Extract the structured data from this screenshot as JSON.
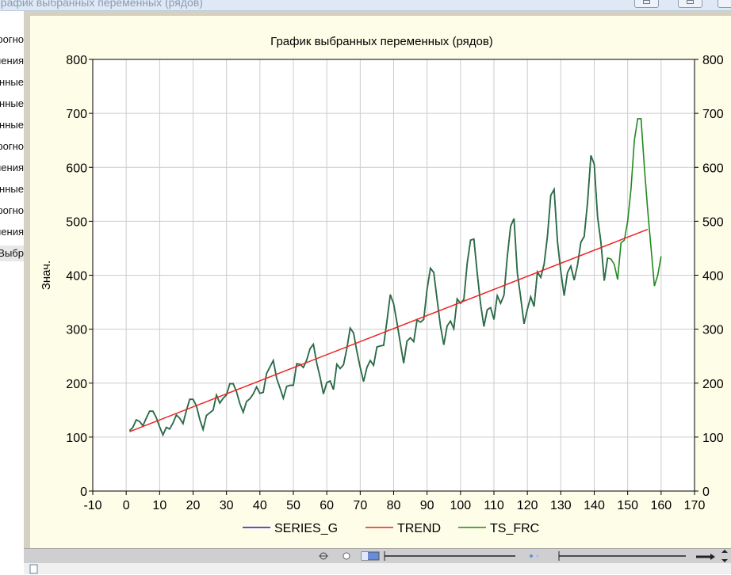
{
  "window": {
    "title": "График выбранных переменных (рядов)"
  },
  "left_panel": {
    "items": [
      {
        "label": "Прогно:",
        "selected": false
      },
      {
        "label": "Значения",
        "selected": false
      },
      {
        "label": "Переменные",
        "selected": false
      },
      {
        "label": "Переменные",
        "selected": false
      },
      {
        "label": "Выбранные",
        "selected": false
      },
      {
        "label": "Прогно:",
        "selected": false
      },
      {
        "label": "Значения",
        "selected": false
      },
      {
        "label": "Переменные",
        "selected": false
      },
      {
        "label": "Прогно:",
        "selected": false
      },
      {
        "label": "Значения",
        "selected": false
      },
      {
        "label": "Выбр",
        "selected": true
      }
    ]
  },
  "colors": {
    "series_g": "#1a1acc",
    "trend": "#ee2222",
    "ts_frc": "#1f8a1f",
    "overlap": "#2d6a4a",
    "grid": "#cccccc",
    "plot_bg": "#ffffff",
    "frame_bg": "#fdfde8"
  },
  "chart_data": {
    "type": "line",
    "title": "График выбранных переменных (рядов)",
    "xlabel": "",
    "ylabel": "Знач.",
    "xlim": [
      -10,
      170
    ],
    "ylim": [
      0,
      800
    ],
    "x_ticks": [
      "-10",
      "0",
      "10",
      "20",
      "30",
      "40",
      "50",
      "60",
      "70",
      "80",
      "90",
      "100",
      "110",
      "120",
      "130",
      "140",
      "150",
      "160",
      "170"
    ],
    "y_ticks": [
      "0",
      "100",
      "200",
      "300",
      "400",
      "500",
      "600",
      "700",
      "800"
    ],
    "y_ticks_right": [
      "0",
      "100",
      "200",
      "300",
      "400",
      "500",
      "600",
      "700",
      "800"
    ],
    "grid": true,
    "legend_position": "bottom",
    "series": [
      {
        "name": "SERIES_G",
        "x_start": 1,
        "values": [
          112,
          118,
          132,
          129,
          121,
          135,
          148,
          148,
          136,
          119,
          104,
          118,
          115,
          126,
          141,
          135,
          125,
          149,
          170,
          170,
          158,
          133,
          114,
          140,
          145,
          150,
          178,
          163,
          172,
          178,
          199,
          199,
          184,
          162,
          146,
          166,
          171,
          180,
          193,
          181,
          183,
          218,
          230,
          242,
          209,
          191,
          172,
          194,
          196,
          196,
          236,
          235,
          229,
          243,
          264,
          272,
          237,
          211,
          180,
          201,
          204,
          188,
          235,
          227,
          234,
          264,
          302,
          293,
          259,
          229,
          203,
          229,
          242,
          233,
          267,
          269,
          270,
          315,
          364,
          347,
          312,
          274,
          237,
          278,
          284,
          277,
          317,
          313,
          318,
          374,
          413,
          405,
          355,
          306,
          271,
          306,
          315,
          301,
          356,
          348,
          355,
          422,
          465,
          467,
          404,
          347,
          305,
          336,
          340,
          318,
          362,
          348,
          363,
          435,
          491,
          505,
          404,
          359,
          310,
          337,
          360,
          342,
          406,
          396,
          420,
          472,
          548,
          559,
          463,
          407,
          362,
          405,
          417,
          391,
          419,
          461,
          472,
          535,
          622,
          606,
          508,
          461,
          390,
          432
        ]
      },
      {
        "name": "TREND",
        "x_start": 1,
        "x_end": 156,
        "values": [
          110,
          485
        ]
      },
      {
        "name": "TS_FRC",
        "x_start": 1,
        "values": [
          112,
          118,
          132,
          129,
          121,
          135,
          148,
          148,
          136,
          119,
          104,
          118,
          115,
          126,
          141,
          135,
          125,
          149,
          170,
          170,
          158,
          133,
          114,
          140,
          145,
          150,
          178,
          163,
          172,
          178,
          199,
          199,
          184,
          162,
          146,
          166,
          171,
          180,
          193,
          181,
          183,
          218,
          230,
          242,
          209,
          191,
          172,
          194,
          196,
          196,
          236,
          235,
          229,
          243,
          264,
          272,
          237,
          211,
          180,
          201,
          204,
          188,
          235,
          227,
          234,
          264,
          302,
          293,
          259,
          229,
          203,
          229,
          242,
          233,
          267,
          269,
          270,
          315,
          364,
          347,
          312,
          274,
          237,
          278,
          284,
          277,
          317,
          313,
          318,
          374,
          413,
          405,
          355,
          306,
          271,
          306,
          315,
          301,
          356,
          348,
          355,
          422,
          465,
          467,
          404,
          347,
          305,
          336,
          340,
          318,
          362,
          348,
          363,
          435,
          491,
          505,
          404,
          359,
          310,
          337,
          360,
          342,
          406,
          396,
          420,
          472,
          548,
          559,
          463,
          407,
          362,
          405,
          417,
          391,
          419,
          461,
          472,
          535,
          622,
          606,
          508,
          461,
          390,
          432,
          430,
          420,
          392,
          460,
          465,
          500,
          560,
          650,
          690,
          690,
          600,
          520,
          450,
          380,
          400,
          435
        ]
      }
    ]
  }
}
